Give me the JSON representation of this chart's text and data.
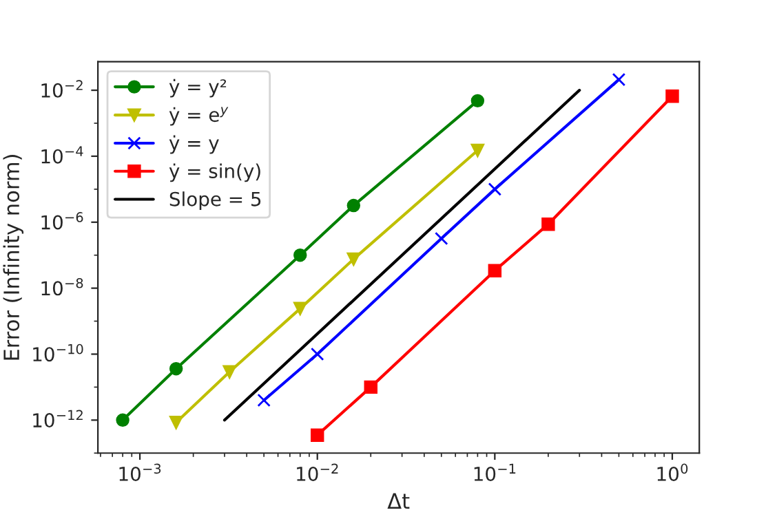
{
  "chart_data": {
    "type": "line",
    "xlabel": "Δt",
    "ylabel": "Error (Infinity norm)",
    "log": "xy",
    "grid": false,
    "legend": "top left",
    "xlim": [
      0.00058,
      1.42
    ],
    "ylim": [
      1e-13,
      0.073
    ],
    "xticks": [
      {
        "value": 0.001,
        "label": "10$^{−3}$"
      },
      {
        "value": 0.01,
        "label": "10$^{−2}$"
      },
      {
        "value": 0.1,
        "label": "10$^{−1}$"
      },
      {
        "value": 1,
        "label": "10$^{0}$"
      }
    ],
    "yticks": [
      {
        "value": 1e-12,
        "label": "10$^{−12}$"
      },
      {
        "value": 1e-10,
        "label": "10$^{−10}$"
      },
      {
        "value": 1e-08,
        "label": "10$^{−8}$"
      },
      {
        "value": 1e-06,
        "label": "10$^{−6}$"
      },
      {
        "value": 0.0001,
        "label": "10$^{−4}$"
      },
      {
        "value": 0.01,
        "label": "10$^{−2}$"
      }
    ],
    "series": [
      {
        "name": "ẏ = y²",
        "color": "#008000",
        "marker": "circle",
        "x": [
          0.0008,
          0.0016,
          0.008,
          0.016,
          0.08
        ],
        "values": [
          1e-12,
          3.6e-11,
          1e-07,
          3.2e-06,
          0.0048
        ]
      },
      {
        "name": "ẏ = e$^{y}$",
        "color": "#bfbf00",
        "marker": "triangle",
        "x": [
          0.0016,
          0.0032,
          0.008,
          0.016,
          0.08
        ],
        "values": [
          8.5e-13,
          2.9e-11,
          2.4e-09,
          7.6e-08,
          0.00015
        ]
      },
      {
        "name": "ẏ = y",
        "color": "#0000ff",
        "marker": "cross",
        "x": [
          0.005,
          0.01,
          0.05,
          0.1,
          0.5
        ],
        "values": [
          4e-12,
          1e-10,
          3.2e-07,
          1e-05,
          0.021
        ]
      },
      {
        "name": "ẏ = sin(y)",
        "color": "#ff0000",
        "marker": "square",
        "x": [
          0.01,
          0.02,
          0.1,
          0.2,
          1
        ],
        "values": [
          3.5e-13,
          1e-11,
          3.4e-08,
          8.7e-07,
          0.0066
        ]
      },
      {
        "name": "Slope = 5",
        "color": "#000000",
        "marker": "none",
        "x": [
          0.003,
          0.3
        ],
        "values": [
          1e-12,
          0.01
        ]
      }
    ]
  }
}
